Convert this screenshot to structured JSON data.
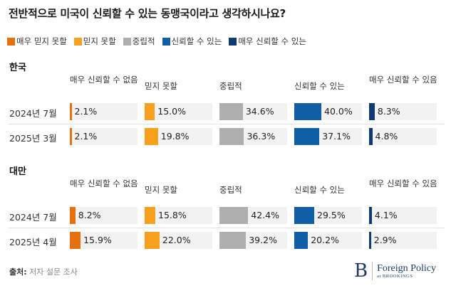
{
  "chart_data": {
    "type": "table",
    "title": "전반적으로 미국이 신뢰할 수 있는 동맹국이라고 생각하시나요?",
    "legend": [
      {
        "label": "매우 믿지 못할",
        "color": "#e8700c"
      },
      {
        "label": "믿지 못할",
        "color": "#f79f1e"
      },
      {
        "label": "중립적",
        "color": "#aeaeae"
      },
      {
        "label": "신뢰할 수 있는",
        "color": "#0f5ea6"
      },
      {
        "label": "매우 신뢰할 수 있는",
        "color": "#0d3a70"
      }
    ],
    "columns": [
      "매우 신뢰할 수 없음",
      "믿지 못할",
      "중립적",
      "신뢰할 수 있는",
      "매우 신뢰할 수 있음"
    ],
    "sections": [
      {
        "name": "한국",
        "rows": [
          {
            "label": "2024년 7월",
            "values": [
              2.1,
              15.0,
              34.6,
              40.0,
              8.3
            ],
            "labels": [
              "2.1%",
              "15.0%",
              "34.6%",
              "40.0%",
              "8.3%"
            ]
          },
          {
            "label": "2025년 3월",
            "values": [
              2.1,
              19.8,
              36.3,
              37.1,
              4.8
            ],
            "labels": [
              "2.1%",
              "19.8%",
              "36.3%",
              "37.1%",
              "4.8%"
            ]
          }
        ]
      },
      {
        "name": "대만",
        "rows": [
          {
            "label": "2024년 7월",
            "values": [
              8.2,
              15.8,
              42.4,
              29.5,
              4.1
            ],
            "labels": [
              "8.2%",
              "15.8%",
              "42.4%",
              "29.5%",
              "4.1%"
            ]
          },
          {
            "label": "2025년 4월",
            "values": [
              15.9,
              22.0,
              39.2,
              20.2,
              2.9
            ],
            "labels": [
              "15.9%",
              "22.0%",
              "39.2%",
              "20.2%",
              "2.9%"
            ]
          }
        ]
      }
    ],
    "value_max": 100
  },
  "footer": {
    "source_label": "출처:",
    "source_text": " 저자 설문 조사",
    "logo_letter": "B",
    "logo_title": "Foreign Policy",
    "logo_sub": "at BROOKINGS"
  }
}
